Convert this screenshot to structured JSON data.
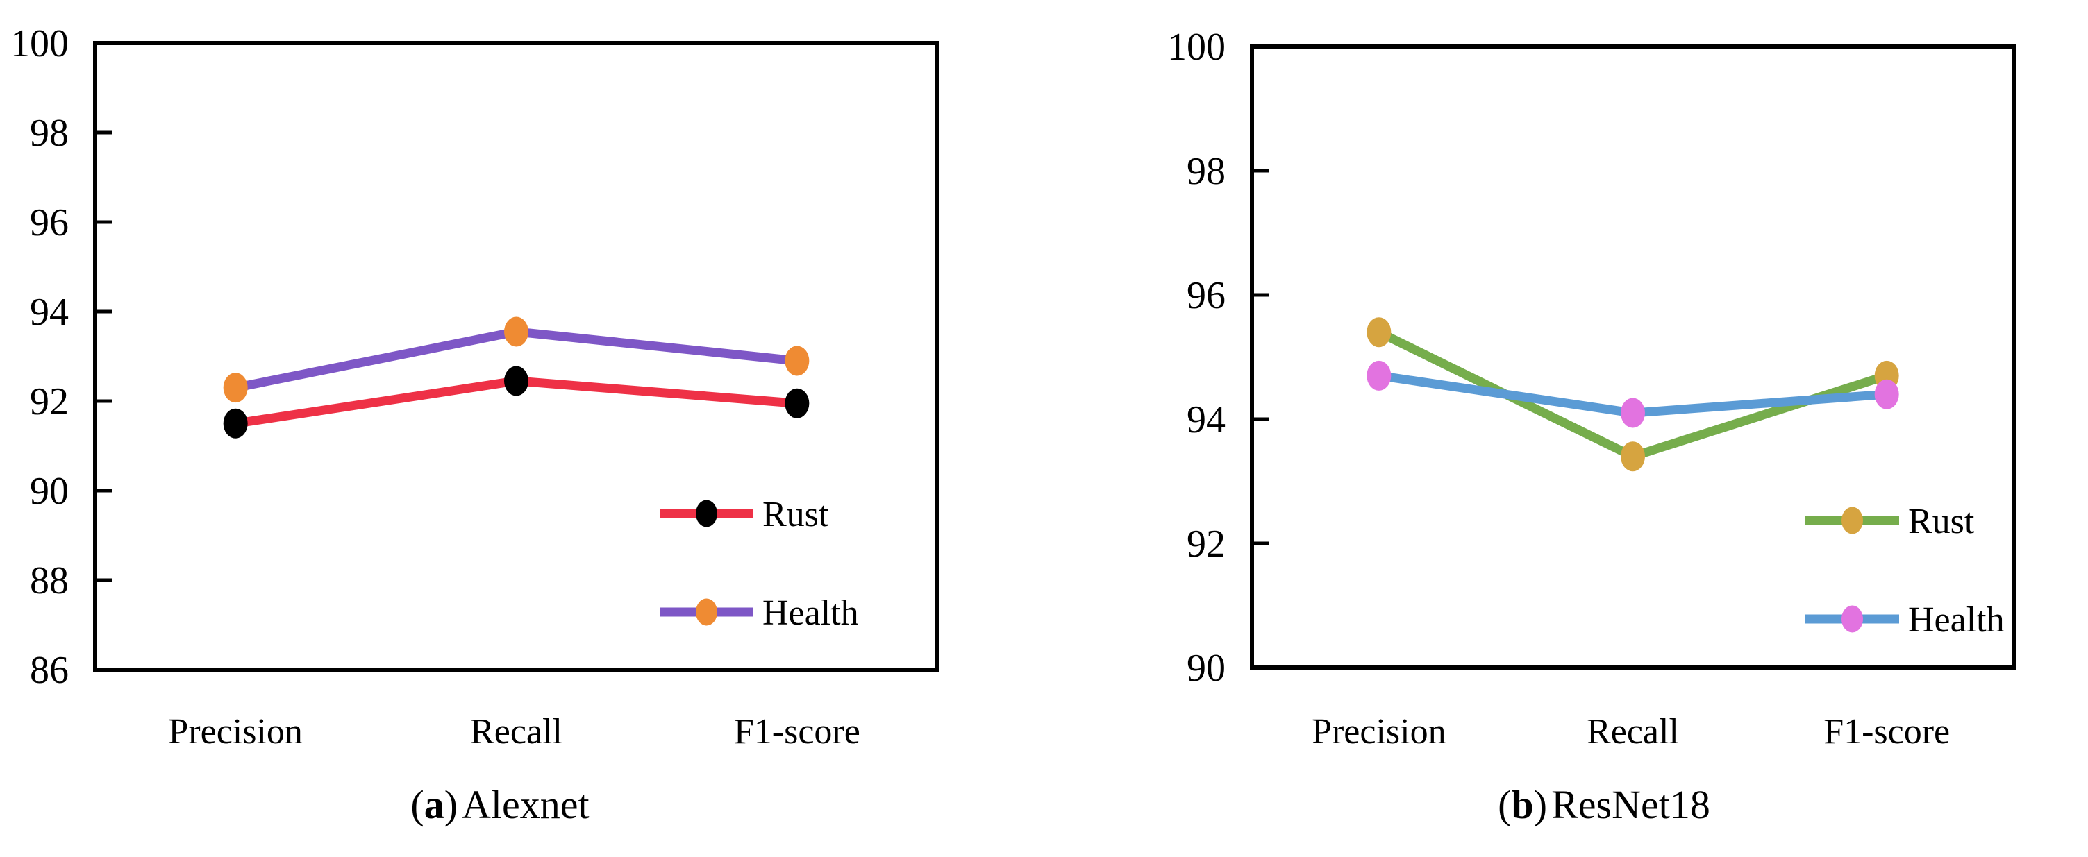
{
  "figure": {
    "background_color": "#ffffff",
    "text_color": "#000000",
    "description": "Two side-by-side line charts comparing Precision, Recall and F1-score for Rust and Health classes"
  },
  "chart_data": [
    {
      "type": "line",
      "title": "(a) Alexnet",
      "caption": {
        "open": "(",
        "letter": "a",
        "close": ")",
        "title": "Alexnet"
      },
      "categories": [
        "Precision",
        "Recall",
        "F1-score"
      ],
      "series": [
        {
          "name": "Rust",
          "values": [
            91.5,
            92.45,
            91.95
          ],
          "line_color": "#ee3146",
          "marker_color": "#000000",
          "marker": "circle"
        },
        {
          "name": "Health",
          "values": [
            92.3,
            93.55,
            92.9
          ],
          "line_color": "#7e57c6",
          "marker_color": "#ef8b33",
          "marker": "circle"
        }
      ],
      "xlabel": "",
      "ylabel": "",
      "ylim": [
        86,
        100
      ],
      "yticks": [
        86,
        88,
        90,
        92,
        94,
        96,
        98,
        100
      ],
      "grid": false,
      "legend_position": "inside-lower-right",
      "legend_labels": [
        "Rust",
        "Health"
      ]
    },
    {
      "type": "line",
      "title": "(b) ResNet18",
      "caption": {
        "open": "(",
        "letter": "b",
        "close": ")",
        "title": "ResNet18"
      },
      "categories": [
        "Precision",
        "Recall",
        "F1-score"
      ],
      "series": [
        {
          "name": "Rust",
          "values": [
            95.4,
            93.4,
            94.7
          ],
          "line_color": "#76ad4c",
          "marker_color": "#d6a440",
          "marker": "circle"
        },
        {
          "name": "Health",
          "values": [
            94.7,
            94.1,
            94.4
          ],
          "line_color": "#5b9bd5",
          "marker_color": "#e273e0",
          "marker": "circle"
        }
      ],
      "xlabel": "",
      "ylabel": "",
      "ylim": [
        90,
        100
      ],
      "yticks": [
        90,
        92,
        94,
        96,
        98,
        100
      ],
      "grid": false,
      "legend_position": "inside-lower-right",
      "legend_labels": [
        "Rust",
        "Health"
      ]
    }
  ]
}
